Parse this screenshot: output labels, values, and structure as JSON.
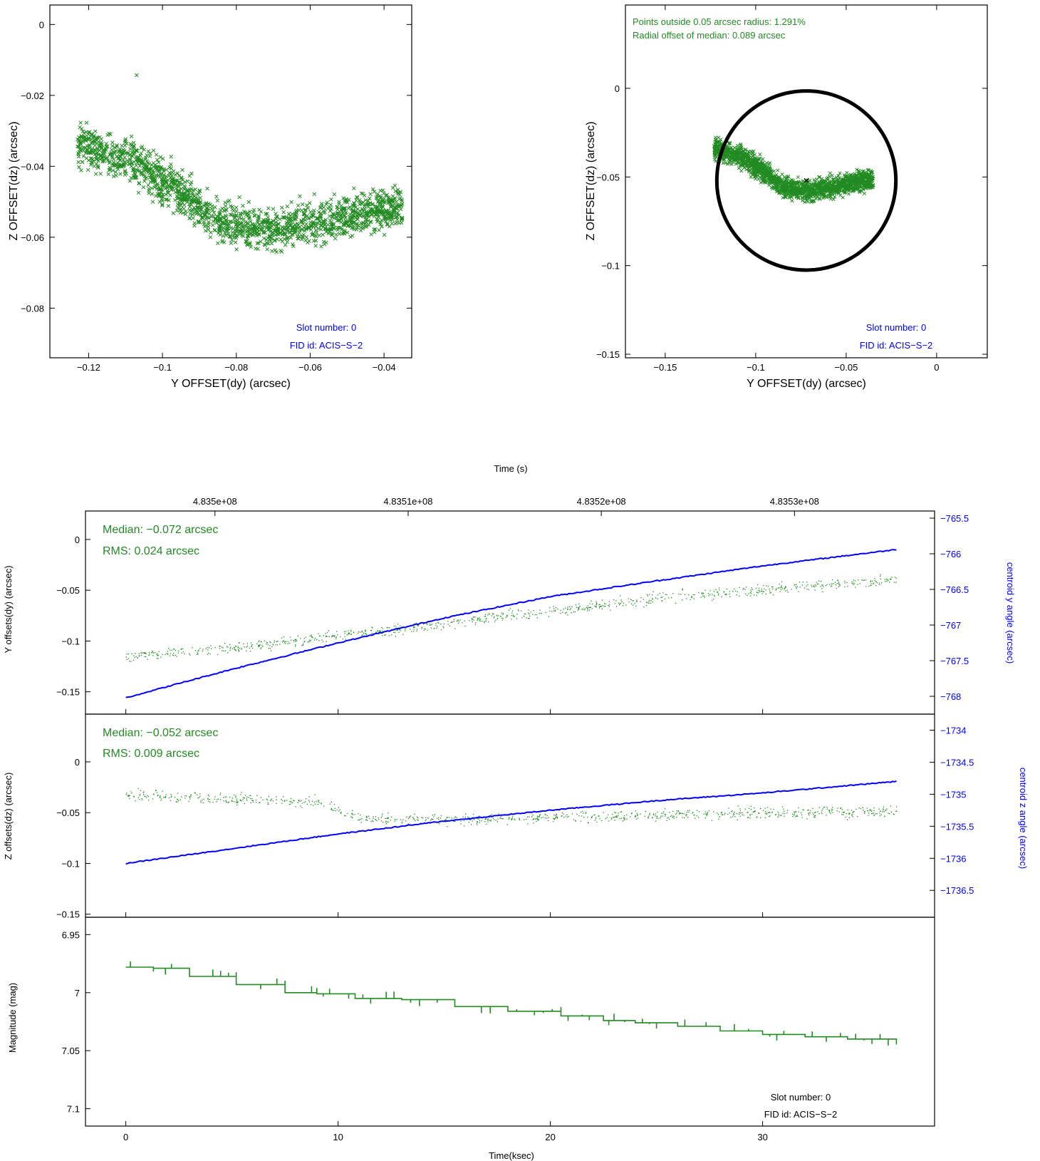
{
  "colors": {
    "green": "#228B22",
    "blue": "#0000FF",
    "black": "#000000",
    "axis": "#000000"
  },
  "chart_data": [
    {
      "type": "scatter",
      "id": "scatter_left",
      "xlabel": "Y OFFSET(dy) (arcsec)",
      "ylabel": "Z OFFSET(dz) (arcsec)",
      "xlim": [
        -0.1305,
        -0.0325
      ],
      "ylim": [
        -0.094,
        0.0055
      ],
      "xticks": [
        -0.12,
        -0.1,
        -0.08,
        -0.06,
        -0.04
      ],
      "xtick_labels": [
        "−0.12",
        "−0.1",
        "−0.08",
        "−0.06",
        "−0.04"
      ],
      "yticks": [
        0,
        -0.02,
        -0.04,
        -0.06,
        -0.08
      ],
      "ytick_labels": [
        "0",
        "−0.02",
        "−0.04",
        "−0.06",
        "−0.08"
      ],
      "marker": "x",
      "series_color": "green",
      "point_cloud": {
        "segments": [
          [
            -0.123,
            -0.034
          ],
          [
            -0.108,
            -0.039
          ],
          [
            -0.094,
            -0.048
          ],
          [
            -0.085,
            -0.056
          ],
          [
            -0.07,
            -0.058
          ],
          [
            -0.055,
            -0.055
          ],
          [
            -0.043,
            -0.052
          ],
          [
            -0.035,
            -0.052
          ]
        ],
        "spread_y": 0.0055,
        "count": 1700
      },
      "outlier": [
        -0.107,
        -0.0143
      ],
      "annotations": [
        "Slot number: 0",
        "FID id: ACIS−S−2"
      ]
    },
    {
      "type": "scatter",
      "id": "scatter_right",
      "xlabel": "Y OFFSET(dy) (arcsec)",
      "ylabel": "Z OFFSET(dz) (arcsec)",
      "xlim": [
        -0.172,
        0.028
      ],
      "ylim": [
        -0.152,
        0.047
      ],
      "xticks": [
        -0.15,
        -0.1,
        -0.05,
        0
      ],
      "xtick_labels": [
        "−0.15",
        "−0.1",
        "−0.05",
        "0"
      ],
      "yticks": [
        0,
        -0.05,
        -0.1,
        -0.15
      ],
      "ytick_labels": [
        "0",
        "−0.05",
        "−0.1",
        "−0.15"
      ],
      "marker": "x",
      "series_color": "green",
      "circle": {
        "center": [
          -0.072,
          -0.052
        ],
        "radius": 0.05
      },
      "median_marker": [
        -0.072,
        -0.052
      ],
      "annotations": [
        "Points outside 0.05 arcsec radius: 1.291%",
        "Radial offset of median: 0.089 arcsec",
        "Slot number: 0",
        "FID id: ACIS−S−2"
      ]
    },
    {
      "type": "line",
      "id": "ydy_panel",
      "top_axis_title": "Time (s)",
      "top_ticks": [
        "4.835e+08",
        "4.8351e+08",
        "4.8352e+08",
        "4.8353e+08"
      ],
      "top_tick_ksec": [
        4.2,
        13.3,
        22.4,
        31.5
      ],
      "xlim": [
        -1.9,
        38.1
      ],
      "ylabel": "Y offsets(dy) (arcsec)",
      "ylim": [
        -0.172,
        0.028
      ],
      "yticks": [
        0,
        -0.05,
        -0.1,
        -0.15
      ],
      "ytick_labels": [
        "0",
        "−0.05",
        "−0.1",
        "−0.15"
      ],
      "y2label": "centroid y angle (arcsec)",
      "y2lim": [
        -768.25,
        -765.4
      ],
      "y2ticks": [
        -765.5,
        -766,
        -766.5,
        -767,
        -767.5,
        -768
      ],
      "y2tick_labels": [
        "−765.5",
        "−766",
        "−766.5",
        "−767",
        "−767.5",
        "−768"
      ],
      "series": [
        {
          "color": "green",
          "style": "dots",
          "x": [
            0,
            5,
            10,
            15,
            20,
            25,
            30,
            36.3
          ],
          "y": [
            -0.115,
            -0.107,
            -0.094,
            -0.083,
            -0.07,
            -0.058,
            -0.049,
            -0.039
          ],
          "noise": 0.005
        },
        {
          "color": "blue",
          "style": "line",
          "axis": "right",
          "x": [
            0,
            5,
            10,
            15,
            20,
            25,
            30,
            36.3
          ],
          "y": [
            -768.02,
            -767.62,
            -767.25,
            -766.9,
            -766.6,
            -766.38,
            -766.17,
            -765.94
          ]
        }
      ],
      "annotations": [
        "Median: −0.072 arcsec",
        "RMS: 0.024 arcsec"
      ]
    },
    {
      "type": "line",
      "id": "zdz_panel",
      "xlim": [
        -1.9,
        38.1
      ],
      "ylabel": "Z offsets(dz) (arcsec)",
      "ylim": [
        -0.153,
        0.047
      ],
      "yticks": [
        0,
        -0.05,
        -0.1,
        -0.15
      ],
      "ytick_labels": [
        "0",
        "−0.05",
        "−0.1",
        "−0.15"
      ],
      "y2label": "centroid z angle (arcsec)",
      "y2lim": [
        -1736.92,
        -1733.75
      ],
      "y2ticks": [
        -1734,
        -1734.5,
        -1735,
        -1735.5,
        -1736,
        -1736.5
      ],
      "y2tick_labels": [
        "−1734",
        "−1734.5",
        "−1735",
        "−1735.5",
        "−1736",
        "−1736.5"
      ],
      "series": [
        {
          "color": "green",
          "style": "dots",
          "x": [
            0,
            5,
            9,
            11,
            15,
            20,
            25,
            30,
            36.3
          ],
          "y": [
            -0.032,
            -0.036,
            -0.039,
            -0.055,
            -0.057,
            -0.054,
            -0.052,
            -0.05,
            -0.048
          ],
          "noise": 0.005
        },
        {
          "color": "blue",
          "style": "line",
          "axis": "right",
          "x": [
            0,
            5,
            10,
            15,
            20,
            25,
            30,
            36.3
          ],
          "y": [
            -1736.08,
            -1735.85,
            -1735.62,
            -1735.42,
            -1735.25,
            -1735.1,
            -1734.98,
            -1734.8
          ]
        }
      ],
      "annotations": [
        "Median: −0.052 arcsec",
        "RMS: 0.009 arcsec"
      ]
    },
    {
      "type": "line",
      "id": "mag_panel",
      "xlabel": "Time(ksec)",
      "xlim": [
        -1.9,
        38.1
      ],
      "xticks": [
        0,
        10,
        20,
        30
      ],
      "xtick_labels": [
        "0",
        "10",
        "20",
        "30"
      ],
      "ylabel": "Magnitude (mag)",
      "ylim": [
        7.115,
        6.935
      ],
      "yticks": [
        6.95,
        7,
        7.05,
        7.1
      ],
      "ytick_labels": [
        "6.95",
        "7",
        "7.05",
        "7.1"
      ],
      "series": [
        {
          "color": "green",
          "style": "step",
          "x": [
            0,
            1.3,
            3.0,
            5.2,
            7.5,
            9.0,
            10.8,
            13.0,
            15.5,
            18.0,
            20.5,
            22.5,
            24.0,
            26.0,
            28.0,
            30.0,
            32.0,
            34.0,
            36.3
          ],
          "y": [
            6.978,
            6.979,
            6.986,
            6.993,
            7.0,
            7.001,
            7.005,
            7.006,
            7.012,
            7.016,
            7.02,
            7.024,
            7.026,
            7.029,
            7.033,
            7.036,
            7.038,
            7.04,
            7.041
          ]
        }
      ],
      "annotations": [
        "Slot number: 0",
        "FID id: ACIS−S−2"
      ]
    }
  ]
}
